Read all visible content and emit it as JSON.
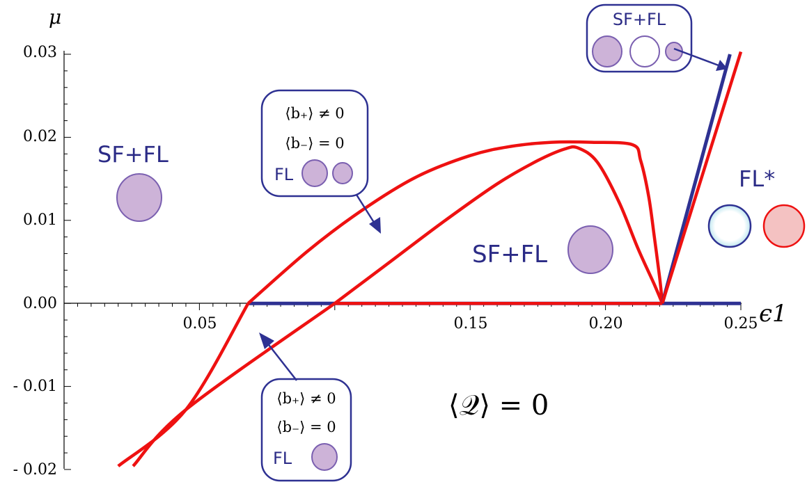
{
  "chart_data": {
    "type": "line",
    "xlabel": "ϵ1",
    "ylabel": "μ",
    "xlim": [
      0.0,
      0.25
    ],
    "ylim": [
      -0.02,
      0.03
    ],
    "x_tick_labels": [
      "0.05",
      "0.15",
      "0.20",
      "0.25"
    ],
    "x_tick_values": [
      0.05,
      0.15,
      0.2,
      0.25
    ],
    "y_tick_labels": [
      "0.03",
      "0.02",
      "0.01",
      "0.00",
      "- 0.01",
      "- 0.02"
    ],
    "y_tick_values": [
      0.03,
      0.02,
      0.01,
      0.0,
      -0.01,
      -0.02
    ],
    "grid": false,
    "colors": {
      "red": "#ee1111",
      "blue": "#2e3192",
      "bubble_fill": "#cdb3d8",
      "bubble_stroke": "#7a5fb0",
      "pink_fill": "#f4c2c2",
      "cyan_glow": "#bfe7f0"
    },
    "series": [
      {
        "color": "#2e3192",
        "role": "blue-axis-line",
        "x": [
          0.068,
          0.25
        ],
        "y": [
          0.0,
          0.0
        ]
      },
      {
        "color": "#2e3192",
        "role": "blue-steep-line",
        "x": [
          0.221,
          0.246
        ],
        "y": [
          0.0,
          0.03
        ]
      },
      {
        "color": "#ee1111",
        "role": "outer-upper",
        "x": [
          0.068,
          0.09,
          0.11,
          0.13,
          0.15,
          0.165,
          0.18,
          0.195,
          0.21,
          0.213,
          0.216,
          0.218,
          0.22,
          0.221
        ],
        "y": [
          0.0,
          0.0063,
          0.0112,
          0.0152,
          0.0178,
          0.0189,
          0.0194,
          0.0194,
          0.0191,
          0.0172,
          0.0128,
          0.0081,
          0.0031,
          0.0
        ]
      },
      {
        "color": "#ee1111",
        "role": "inner-upper",
        "x": [
          0.1,
          0.12,
          0.14,
          0.16,
          0.175,
          0.185,
          0.19,
          0.197,
          0.205,
          0.212,
          0.218,
          0.221
        ],
        "y": [
          0.0,
          0.0049,
          0.0098,
          0.0144,
          0.0172,
          0.0186,
          0.0187,
          0.017,
          0.0122,
          0.0066,
          0.0023,
          0.0
        ]
      },
      {
        "color": "#ee1111",
        "role": "zero-segment",
        "x": [
          0.1,
          0.221
        ],
        "y": [
          0.0,
          0.0
        ]
      },
      {
        "color": "#ee1111",
        "role": "steep-right",
        "x": [
          0.221,
          0.25
        ],
        "y": [
          0.0,
          0.0303
        ]
      },
      {
        "color": "#ee1111",
        "role": "lower-left",
        "x": [
          0.068,
          0.045,
          0.02
        ],
        "y": [
          0.0,
          -0.0128,
          -0.0196
        ]
      },
      {
        "color": "#ee1111",
        "role": "lower-right",
        "x": [
          0.1,
          0.045,
          0.0255
        ],
        "y": [
          0.0,
          -0.0128,
          -0.0196
        ]
      }
    ],
    "annotations": {
      "region_left": {
        "label": "SF+FL",
        "x": 0.026,
        "y": 0.0187
      },
      "region_middle": {
        "label": "SF+FL",
        "x": 0.151,
        "y": 0.0055
      },
      "region_right": {
        "label": "FL*",
        "x": 0.232,
        "y": 0.0136
      },
      "equation": "⟨𝒬⟩ = 0",
      "box_upper": {
        "line1": "⟨b₊⟩ ≠ 0",
        "line2": "⟨b₋⟩ = 0",
        "label": "FL"
      },
      "box_lower": {
        "line1": "⟨b₊⟩ ≠ 0",
        "line2": "⟨b₋⟩ = 0",
        "label": "FL"
      },
      "box_top_right": {
        "label": "SF+FL"
      }
    }
  }
}
